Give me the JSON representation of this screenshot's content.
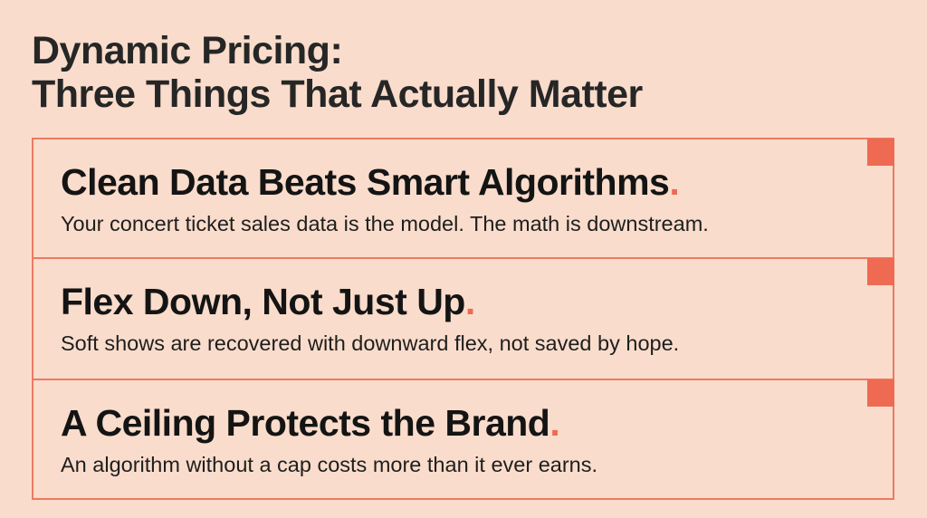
{
  "header": {
    "title_lines": [
      "Dynamic Pricing:",
      "Three Things That Actually Matter"
    ]
  },
  "items": [
    {
      "heading": "Clean Data Beats Smart Algorithms.",
      "body": "Your concert ticket sales data is the model. The math is downstream."
    },
    {
      "heading": "Flex Down, Not Just Up.",
      "body": "Soft shows are recovered with downward flex, not saved by hope."
    },
    {
      "heading": "A Ceiling Protects the Brand.",
      "body": "An algorithm without a cap costs more than it ever earns."
    }
  ]
}
